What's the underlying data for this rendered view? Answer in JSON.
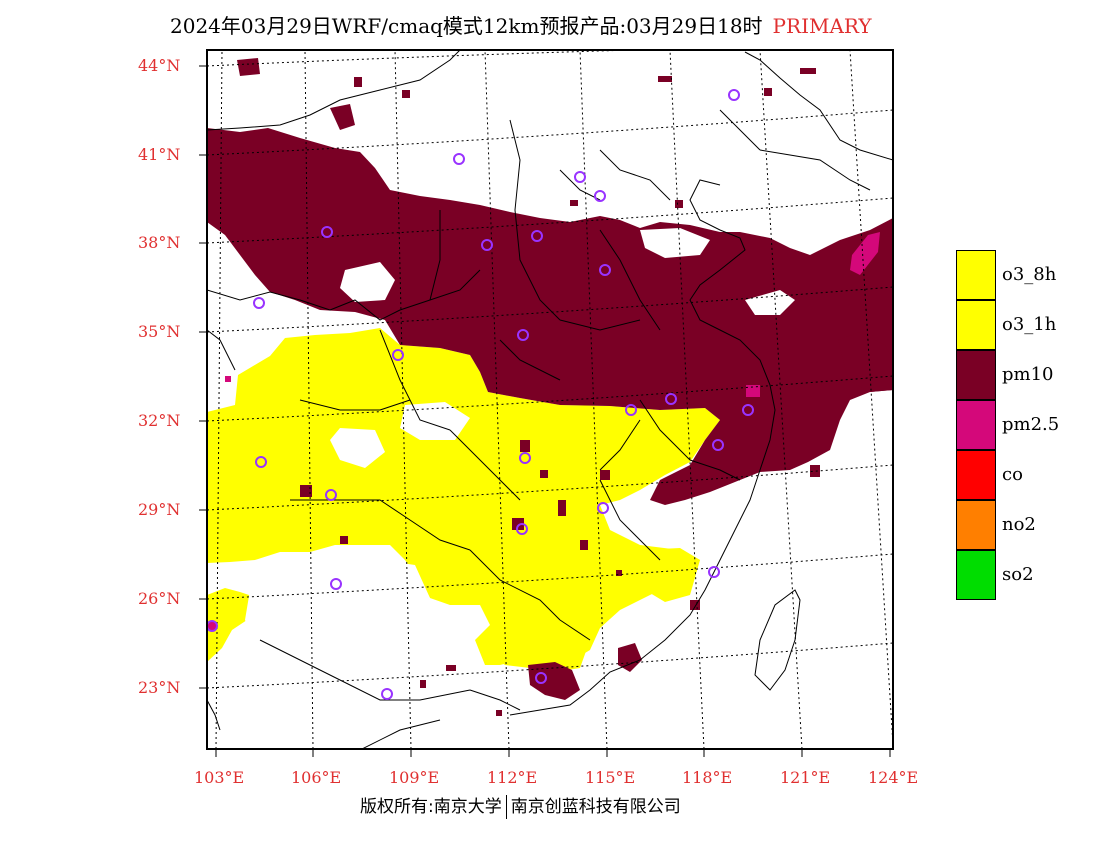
{
  "title": {
    "text": "2024年03月29日WRF/cmaq模式12km预报产品:03月29日18时",
    "tag": "PRIMARY"
  },
  "axes": {
    "lat_labels": [
      "44°N",
      "41°N",
      "38°N",
      "35°N",
      "32°N",
      "29°N",
      "26°N",
      "23°N"
    ],
    "lon_labels": [
      "103°E",
      "106°E",
      "109°E",
      "112°E",
      "115°E",
      "118°E",
      "121°E",
      "124°E"
    ]
  },
  "legend": [
    {
      "label": "o3_8h",
      "color": "#ffff00"
    },
    {
      "label": "o3_1h",
      "color": "#ffff00"
    },
    {
      "label": "pm10",
      "color": "#7a0025"
    },
    {
      "label": "pm2.5",
      "color": "#d4087a"
    },
    {
      "label": "co",
      "color": "#ff0000"
    },
    {
      "label": "no2",
      "color": "#ff7f00"
    },
    {
      "label": "so2",
      "color": "#00dd00"
    }
  ],
  "colors": {
    "pm10": "#7a0025",
    "pm25": "#d4087a",
    "o3": "#ffff00",
    "station": "#9933ff",
    "axis_label": "#e03030"
  },
  "footer": {
    "left": "版权所有:南京大学",
    "right": "南京创蓝科技有限公司"
  }
}
